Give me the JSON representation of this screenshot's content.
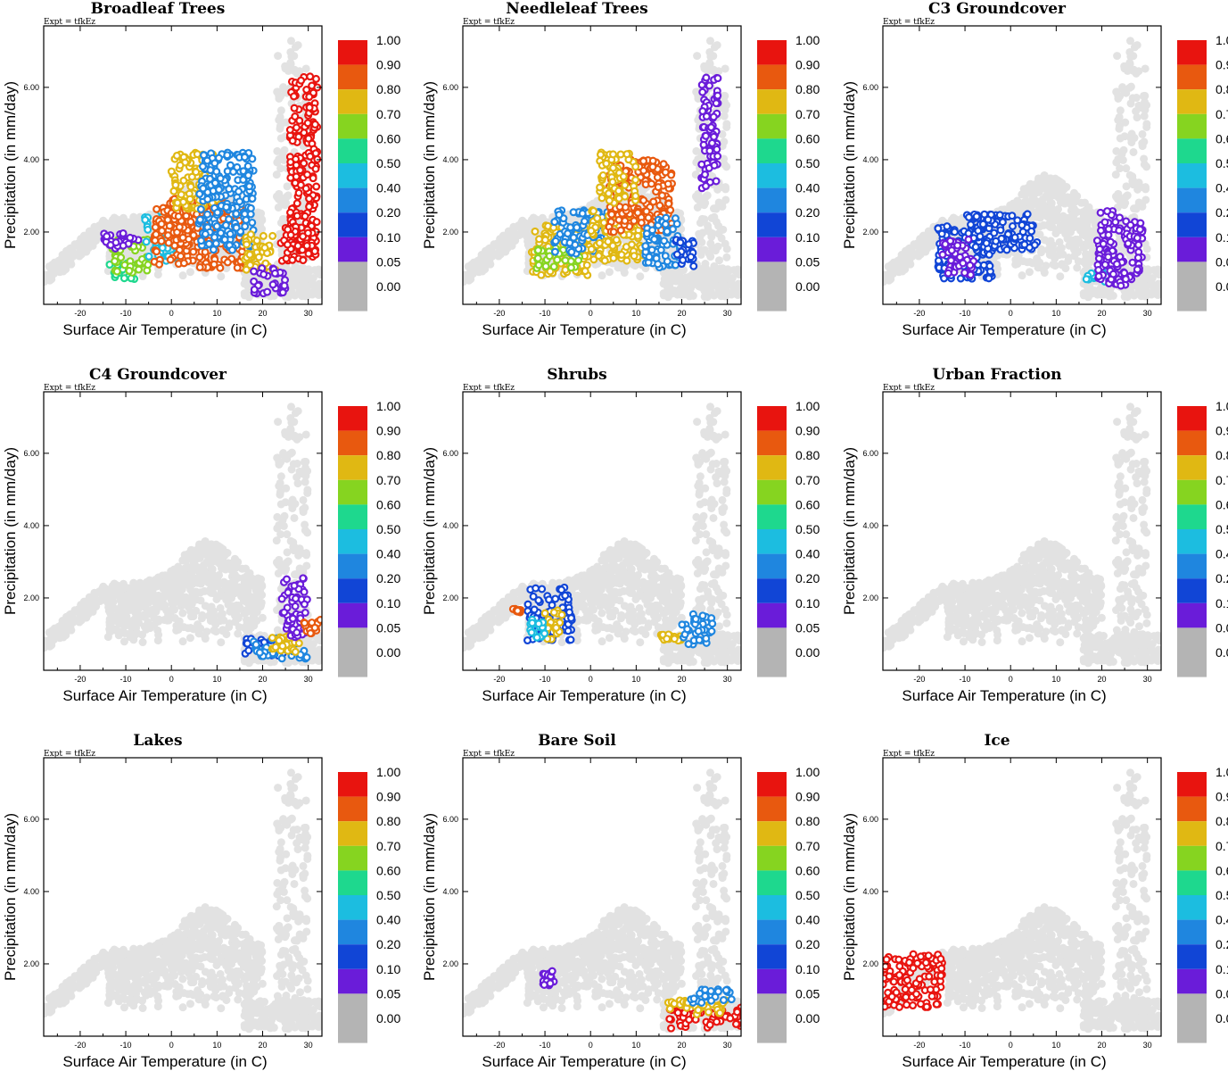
{
  "chart_data": {
    "type": "scatter",
    "xlabel": "Surface Air Temperature (in C)",
    "ylabel": "Precipitation (in mm/day)",
    "expt_label": "Expt = tfkEz",
    "xlim": [
      -28,
      33
    ],
    "ylim": [
      0,
      7.7
    ],
    "x_ticks": [
      -20,
      -10,
      0,
      10,
      20,
      30
    ],
    "x_tick_labels": [
      "-20",
      "-10",
      "0",
      "10",
      "20",
      "30"
    ],
    "y_ticks": [
      2,
      4,
      6
    ],
    "y_tick_labels": [
      "2.00",
      "4.00",
      "6.00"
    ],
    "colorbar": {
      "levels": [
        "1.00",
        "0.90",
        "0.80",
        "0.70",
        "0.60",
        "0.50",
        "0.40",
        "0.20",
        "0.10",
        "0.05",
        "0.00"
      ],
      "colors": [
        "#e8140f",
        "#e8590f",
        "#e0b813",
        "#86d420",
        "#1ed88e",
        "#1cbde0",
        "#1f86df",
        "#1145d6",
        "#6a1cd9",
        "#b4b4b4",
        "#b4b4b4"
      ]
    },
    "background_color": "#e2e2e2",
    "panels": [
      {
        "title": "Broadleaf Trees",
        "clusters": [
          {
            "x": [
              -14,
              -8
            ],
            "y": [
              0.7,
              1.2
            ],
            "color": "#1ed88e"
          },
          {
            "x": [
              -13,
              -5
            ],
            "y": [
              0.8,
              1.8
            ],
            "color": "#86d420"
          },
          {
            "x": [
              -6,
              2
            ],
            "y": [
              1.2,
              2.6
            ],
            "color": "#1cbde0"
          },
          {
            "x": [
              -4,
              16
            ],
            "y": [
              1.0,
              2.8
            ],
            "color": "#e8590f"
          },
          {
            "x": [
              0,
              12
            ],
            "y": [
              1.6,
              3.0
            ],
            "color": "#e8590f"
          },
          {
            "x": [
              0,
              10
            ],
            "y": [
              2.6,
              4.2
            ],
            "color": "#e0b813"
          },
          {
            "x": [
              6,
              18
            ],
            "y": [
              1.5,
              4.2
            ],
            "color": "#1f86df"
          },
          {
            "x": [
              16,
              23
            ],
            "y": [
              0.8,
              2.0
            ],
            "color": "#e0b813"
          },
          {
            "x": [
              18,
              25
            ],
            "y": [
              0.3,
              1.0
            ],
            "color": "#6a1cd9"
          },
          {
            "x": [
              26,
              32
            ],
            "y": [
              1.5,
              6.3
            ],
            "color": "#e8140f"
          },
          {
            "x": [
              24,
              32
            ],
            "y": [
              1.2,
              2.2
            ],
            "color": "#e8140f"
          },
          {
            "x": [
              -15,
              -7
            ],
            "y": [
              1.5,
              2.0
            ],
            "color": "#6a1cd9"
          }
        ]
      },
      {
        "title": "Needleleaf Trees",
        "clusters": [
          {
            "x": [
              -13,
              0
            ],
            "y": [
              0.8,
              2.2
            ],
            "color": "#e0b813"
          },
          {
            "x": [
              -12,
              -2
            ],
            "y": [
              1.0,
              1.6
            ],
            "color": "#86d420"
          },
          {
            "x": [
              -8,
              4
            ],
            "y": [
              1.4,
              2.6
            ],
            "color": "#1f86df"
          },
          {
            "x": [
              0,
              12
            ],
            "y": [
              1.2,
              2.6
            ],
            "color": "#e0b813"
          },
          {
            "x": [
              4,
              18
            ],
            "y": [
              2.0,
              4.0
            ],
            "color": "#e8590f"
          },
          {
            "x": [
              2,
              10
            ],
            "y": [
              2.8,
              4.2
            ],
            "color": "#e0b813"
          },
          {
            "x": [
              12,
              20
            ],
            "y": [
              1.0,
              2.4
            ],
            "color": "#1f86df"
          },
          {
            "x": [
              18,
              23
            ],
            "y": [
              1.0,
              1.8
            ],
            "color": "#1145d6"
          },
          {
            "x": [
              24,
              28
            ],
            "y": [
              3.2,
              6.3
            ],
            "color": "#6a1cd9"
          }
        ]
      },
      {
        "title": "C3 Groundcover",
        "clusters": [
          {
            "x": [
              -16,
              -4
            ],
            "y": [
              0.7,
              2.2
            ],
            "color": "#1145d6"
          },
          {
            "x": [
              -10,
              6
            ],
            "y": [
              1.5,
              2.5
            ],
            "color": "#1145d6"
          },
          {
            "x": [
              -15,
              -8
            ],
            "y": [
              0.8,
              1.8
            ],
            "color": "#6a1cd9"
          },
          {
            "x": [
              16,
              22
            ],
            "y": [
              0.6,
              1.0
            ],
            "color": "#1cbde0"
          },
          {
            "x": [
              19,
              29
            ],
            "y": [
              0.5,
              2.6
            ],
            "color": "#6a1cd9"
          }
        ]
      },
      {
        "title": "C4 Groundcover",
        "clusters": [
          {
            "x": [
              16,
              25
            ],
            "y": [
              0.4,
              0.9
            ],
            "color": "#1145d6"
          },
          {
            "x": [
              18,
              30
            ],
            "y": [
              0.3,
              0.9
            ],
            "color": "#1f86df"
          },
          {
            "x": [
              22,
              28
            ],
            "y": [
              0.5,
              1.0
            ],
            "color": "#e0b813"
          },
          {
            "x": [
              24,
              30
            ],
            "y": [
              0.9,
              2.6
            ],
            "color": "#6a1cd9"
          },
          {
            "x": [
              29,
              33
            ],
            "y": [
              1.0,
              1.4
            ],
            "color": "#e8590f"
          }
        ]
      },
      {
        "title": "Shrubs",
        "clusters": [
          {
            "x": [
              -14,
              -4
            ],
            "y": [
              0.8,
              2.3
            ],
            "color": "#1145d6"
          },
          {
            "x": [
              -10,
              -6
            ],
            "y": [
              0.8,
              1.7
            ],
            "color": "#e0b813"
          },
          {
            "x": [
              -14,
              -10
            ],
            "y": [
              0.9,
              1.4
            ],
            "color": "#1cbde0"
          },
          {
            "x": [
              15,
              20
            ],
            "y": [
              0.8,
              1.0
            ],
            "color": "#e0b813"
          },
          {
            "x": [
              20,
              27
            ],
            "y": [
              0.7,
              1.6
            ],
            "color": "#1f86df"
          },
          {
            "x": [
              -17,
              -15
            ],
            "y": [
              1.6,
              1.7
            ],
            "color": "#e8590f"
          }
        ]
      },
      {
        "title": "Urban Fraction",
        "clusters": []
      },
      {
        "title": "Lakes",
        "clusters": []
      },
      {
        "title": "Bare Soil",
        "clusters": [
          {
            "x": [
              17,
              33
            ],
            "y": [
              0.2,
              0.8
            ],
            "color": "#e8140f"
          },
          {
            "x": [
              17,
              32
            ],
            "y": [
              0.6,
              1.0
            ],
            "color": "#e0b813"
          },
          {
            "x": [
              22,
              31
            ],
            "y": [
              0.9,
              1.3
            ],
            "color": "#1f86df"
          },
          {
            "x": [
              -11,
              -8
            ],
            "y": [
              1.4,
              1.8
            ],
            "color": "#6a1cd9"
          }
        ]
      },
      {
        "title": "Ice",
        "clusters": [
          {
            "x": [
              -28,
              -15
            ],
            "y": [
              0.8,
              2.3
            ],
            "color": "#e8140f"
          }
        ]
      }
    ]
  }
}
